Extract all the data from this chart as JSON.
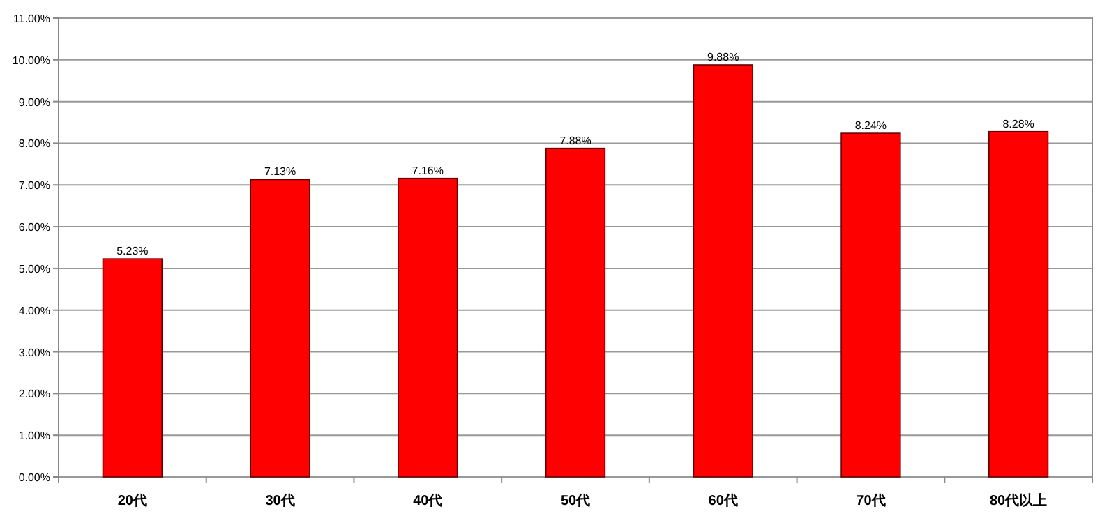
{
  "chart_data": {
    "type": "bar",
    "categories": [
      "20代",
      "30代",
      "40代",
      "50代",
      "60代",
      "70代",
      "80代以上"
    ],
    "series": [
      {
        "color": "#ff0000",
        "values": [
          5.23,
          7.13,
          7.16,
          7.88,
          9.88,
          8.24,
          8.28
        ],
        "value_labels": [
          "5.23%",
          "7.13%",
          "7.16%",
          "7.88%",
          "9.88%",
          "8.24%",
          "8.28%"
        ]
      }
    ],
    "ylim": [
      0,
      11
    ],
    "yticks": [
      {
        "value": 0,
        "label": "0.00%"
      },
      {
        "value": 1,
        "label": "1.00%"
      },
      {
        "value": 2,
        "label": "2.00%"
      },
      {
        "value": 3,
        "label": "3.00%"
      },
      {
        "value": 4,
        "label": "4.00%"
      },
      {
        "value": 5,
        "label": "5.00%"
      },
      {
        "value": 6,
        "label": "6.00%"
      },
      {
        "value": 7,
        "label": "7.00%"
      },
      {
        "value": 8,
        "label": "8.00%"
      },
      {
        "value": 9,
        "label": "9.00%"
      },
      {
        "value": 10,
        "label": "10.00%"
      },
      {
        "value": 11,
        "label": "11.00%"
      }
    ],
    "grid": "y"
  }
}
